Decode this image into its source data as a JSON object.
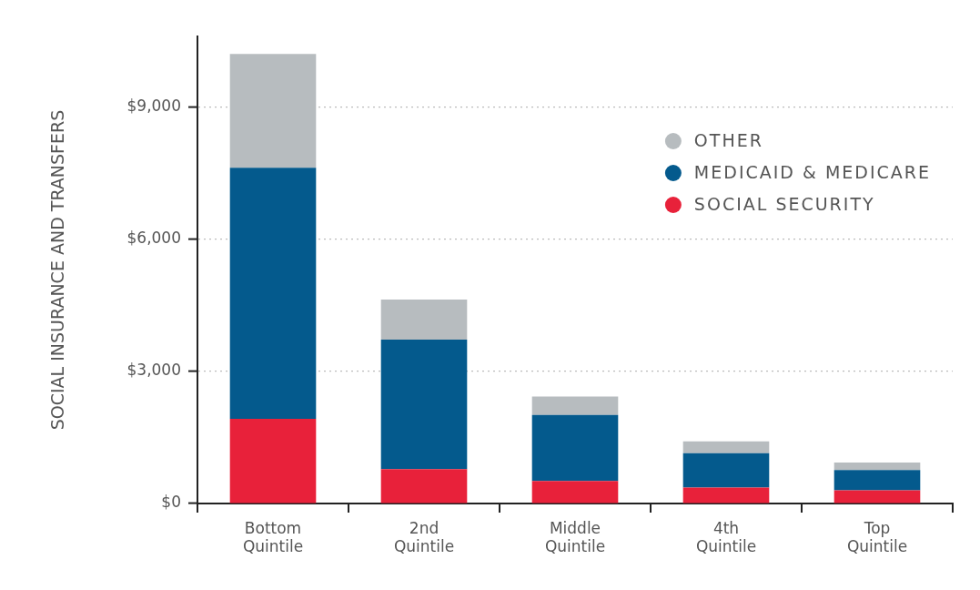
{
  "chart_data": {
    "type": "bar",
    "stacked": true,
    "ylabel": "SOCIAL INSURANCE AND TRANSFERS",
    "categories": [
      "Bottom Quintile",
      "2nd Quintile",
      "Middle Quintile",
      "4th Quintile",
      "Top Quintile"
    ],
    "series": [
      {
        "name": "SOCIAL SECURITY",
        "color": "#e8213a",
        "values": [
          1920,
          780,
          510,
          360,
          300
        ]
      },
      {
        "name": "MEDICAID & MEDICARE",
        "color": "#045a8d",
        "values": [
          5700,
          2940,
          1500,
          780,
          460
        ]
      },
      {
        "name": "OTHER",
        "color": "#b7bcbf",
        "values": [
          2580,
          910,
          420,
          270,
          170
        ]
      }
    ],
    "ylim": [
      0,
      10600
    ],
    "yticks": [
      {
        "value": 0,
        "label": "$0"
      },
      {
        "value": 3000,
        "label": "$3,000"
      },
      {
        "value": 6000,
        "label": "$6,000"
      },
      {
        "value": 9000,
        "label": "$9,000"
      }
    ],
    "grid": "y",
    "legend": "top right"
  }
}
